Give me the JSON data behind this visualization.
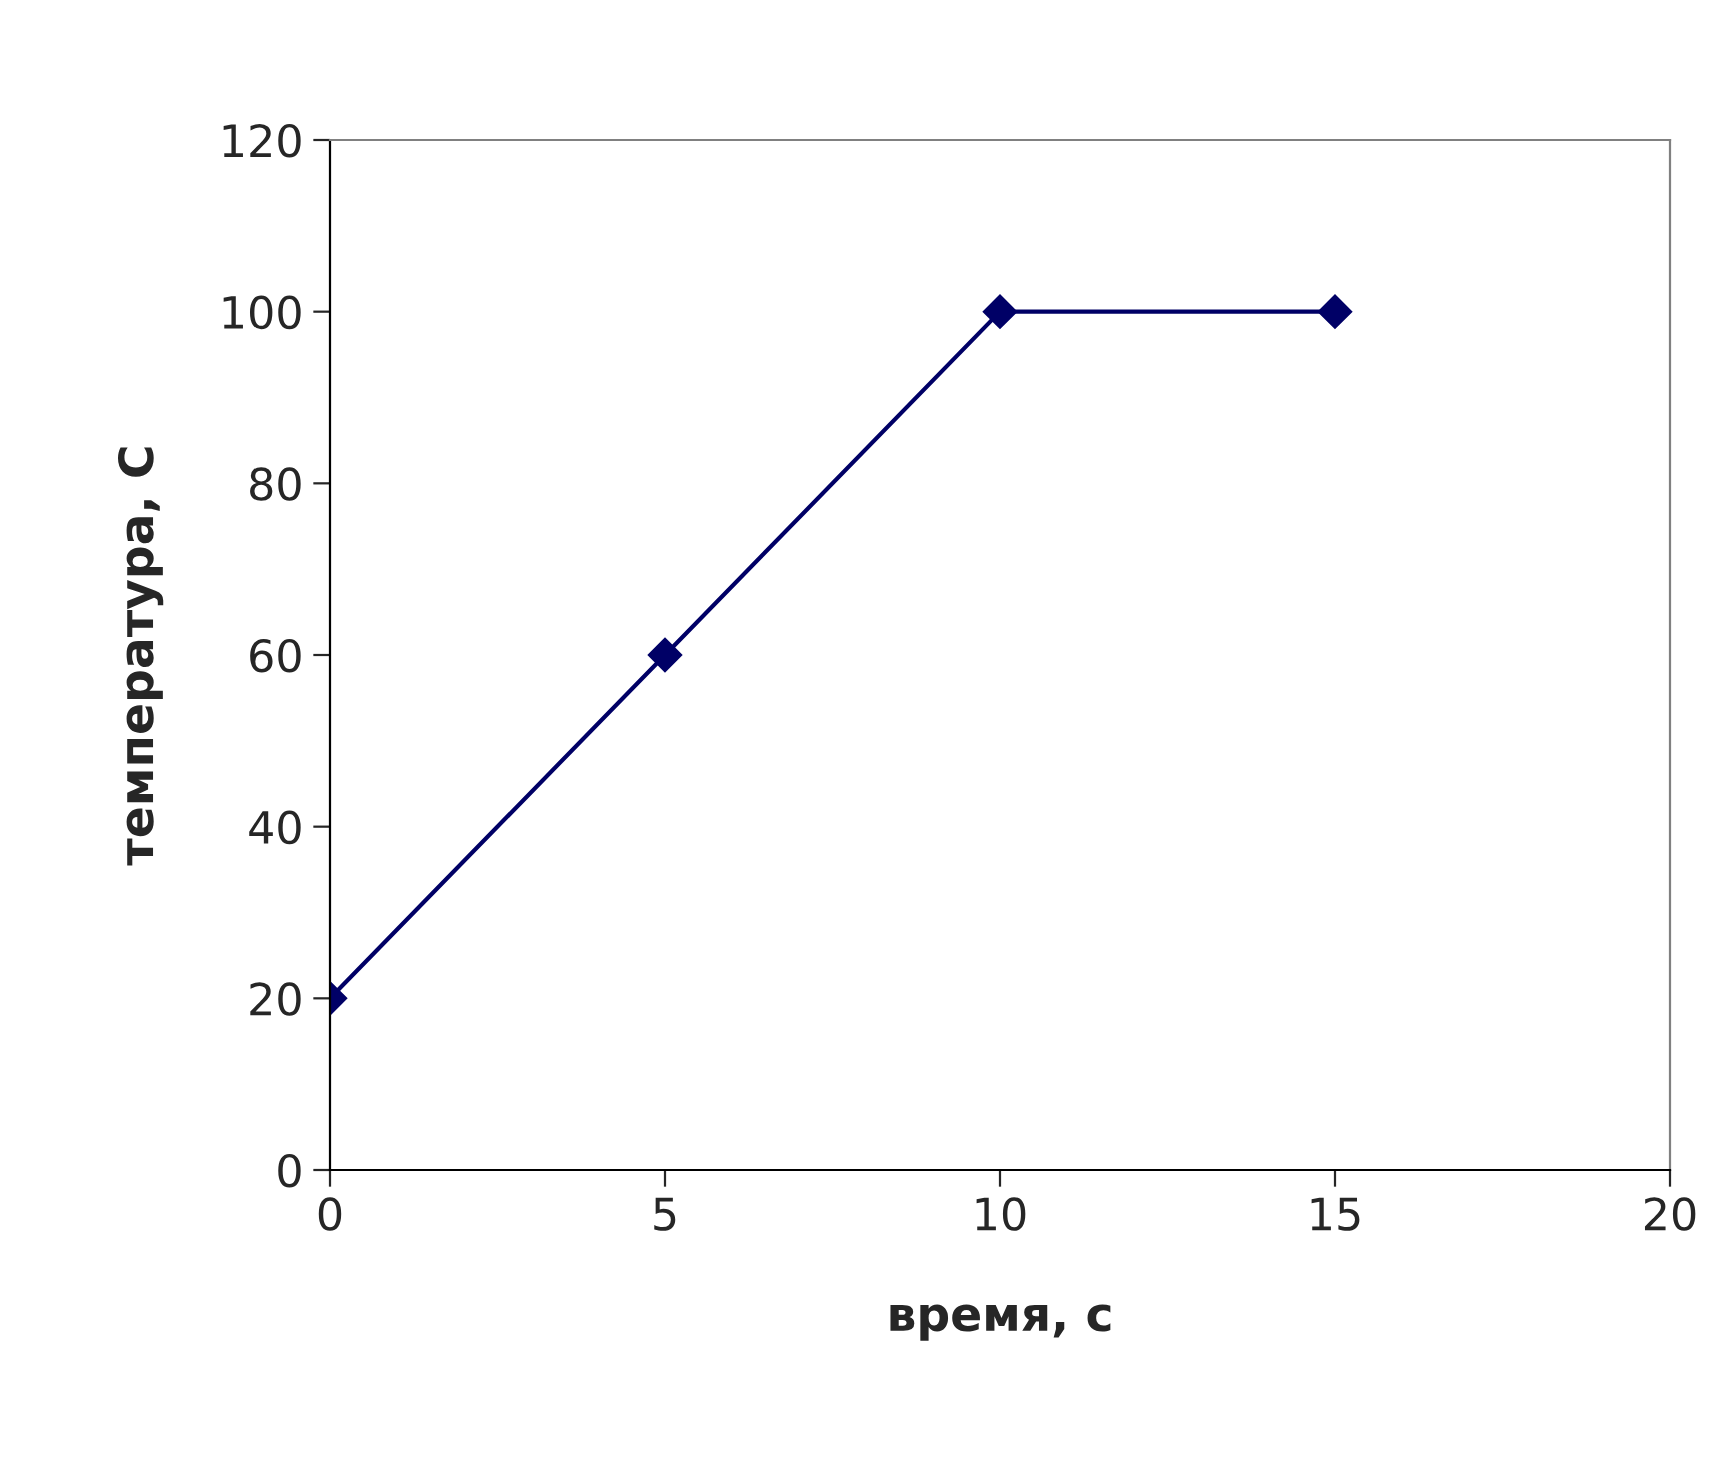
{
  "chart_data": {
    "type": "line",
    "xlabel": "время, с",
    "ylabel": "температура, С",
    "x": [
      0,
      5,
      10,
      15
    ],
    "series": [
      {
        "color": "#000066",
        "values": [
          20,
          60,
          100,
          100
        ]
      }
    ],
    "xlim": [
      0,
      20
    ],
    "xticks": [
      0,
      5,
      10,
      15,
      20
    ],
    "ylim": [
      0,
      120
    ],
    "yticks": [
      0,
      20,
      40,
      60,
      80,
      100,
      120
    ],
    "grid": false,
    "marker": "diamond",
    "line_style": "solid",
    "legend": false
  }
}
